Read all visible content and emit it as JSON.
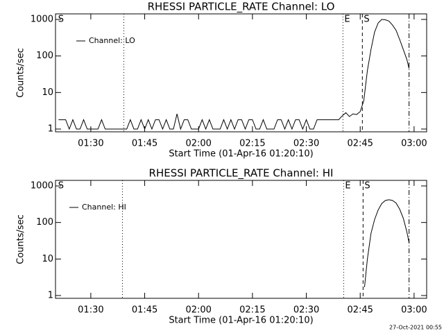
{
  "chart_data": [
    {
      "type": "line",
      "title": "RHESSI PARTICLE_RATE Channel: LO",
      "x_label": "Start Time (01-Apr-16 01:20:10)",
      "y_label": "Counts/sec",
      "log_y": true,
      "xlim": [
        80.17,
        183.5
      ],
      "ylim": [
        0.84,
        1420
      ],
      "xticks": [
        {
          "value": 90,
          "label": "01:30"
        },
        {
          "value": 105,
          "label": "01:45"
        },
        {
          "value": 120,
          "label": "02:00"
        },
        {
          "value": 135,
          "label": "02:15"
        },
        {
          "value": 150,
          "label": "02:30"
        },
        {
          "value": 165,
          "label": "02:45"
        },
        {
          "value": 180,
          "label": "03:00"
        }
      ],
      "yticks": [
        1,
        10,
        100,
        1000
      ],
      "markers": [
        {
          "x": 80.5,
          "style": "none",
          "label": "S"
        },
        {
          "x": 99.2,
          "style": "dotted"
        },
        {
          "x": 160.2,
          "style": "dotted",
          "label": "E"
        },
        {
          "x": 165.6,
          "style": "dashed",
          "label": "S"
        },
        {
          "x": 178.6,
          "style": "dashdot"
        }
      ],
      "x": [
        81,
        82,
        83,
        84,
        85,
        86,
        87,
        88,
        89,
        90,
        91,
        92,
        93,
        94,
        95,
        96,
        97,
        98,
        99,
        100,
        101,
        102,
        103,
        104,
        105,
        106,
        107,
        108,
        109,
        110,
        111,
        112,
        113,
        114,
        115,
        116,
        117,
        118,
        119,
        120,
        121,
        122,
        123,
        124,
        125,
        126,
        127,
        128,
        129,
        130,
        131,
        132,
        133,
        134,
        135,
        136,
        137,
        138,
        139,
        140,
        141,
        142,
        143,
        144,
        145,
        146,
        147,
        148,
        149,
        150,
        151,
        152,
        153,
        154,
        155,
        156,
        157,
        158,
        159,
        160,
        161,
        162,
        163,
        164,
        165,
        166,
        167,
        168,
        169,
        170,
        171,
        172,
        173,
        174,
        175,
        176,
        177,
        178,
        178.6
      ],
      "series": [
        {
          "name": "Channel: LO",
          "color": "#000000",
          "values": [
            1.8,
            1.8,
            1.8,
            1,
            1.8,
            1,
            1,
            1.8,
            1,
            1,
            1,
            1,
            1.8,
            1,
            1,
            1,
            1,
            1,
            1,
            1,
            1.8,
            1,
            1,
            1.8,
            1,
            1.8,
            1,
            1.8,
            1.8,
            1,
            1.8,
            1,
            1,
            2.6,
            1,
            1.8,
            1.8,
            1,
            1,
            1,
            1.8,
            1,
            1.8,
            1,
            1,
            1,
            1.8,
            1,
            1.8,
            1,
            1.8,
            1.8,
            1,
            1.8,
            1.8,
            1,
            1,
            1.8,
            1,
            1,
            1,
            1.8,
            1.8,
            1,
            1.8,
            1,
            1.8,
            1.8,
            1,
            1.8,
            1,
            1,
            1.8,
            1.8,
            1.8,
            1.8,
            1.8,
            1.8,
            1.8,
            2.3,
            2.8,
            2.2,
            2.6,
            2.5,
            3,
            6,
            40,
            150,
            450,
            800,
            1000,
            980,
            900,
            700,
            500,
            280,
            150,
            80,
            45
          ]
        }
      ]
    },
    {
      "type": "line",
      "title": "RHESSI PARTICLE_RATE Channel: HI",
      "x_label": "Start Time (01-Apr-16 01:20:10)",
      "y_label": "Counts/sec",
      "log_y": true,
      "xlim": [
        80.17,
        183.5
      ],
      "ylim": [
        0.84,
        1420
      ],
      "xticks": [
        {
          "value": 90,
          "label": "01:30"
        },
        {
          "value": 105,
          "label": "01:45"
        },
        {
          "value": 120,
          "label": "02:00"
        },
        {
          "value": 135,
          "label": "02:15"
        },
        {
          "value": 150,
          "label": "02:30"
        },
        {
          "value": 165,
          "label": "02:45"
        },
        {
          "value": 180,
          "label": "03:00"
        }
      ],
      "yticks": [
        1,
        10,
        100,
        1000
      ],
      "markers": [
        {
          "x": 80.5,
          "style": "none",
          "label": "S"
        },
        {
          "x": 98.8,
          "style": "dotted"
        },
        {
          "x": 160.4,
          "style": "dotted",
          "label": "E"
        },
        {
          "x": 165.8,
          "style": "dashed",
          "label": "S"
        },
        {
          "x": 178.6,
          "style": "dashdot"
        }
      ],
      "x": [
        166.2,
        167,
        168,
        169,
        170,
        171,
        172,
        173,
        174,
        175,
        176,
        177,
        178,
        178.6
      ],
      "series": [
        {
          "name": "Channel: HI",
          "color": "#000000",
          "values": [
            1.7,
            10,
            50,
            120,
            220,
            330,
            400,
            420,
            400,
            340,
            230,
            130,
            55,
            28
          ]
        }
      ]
    }
  ],
  "timestamp": "27-Oct-2021 00:55"
}
